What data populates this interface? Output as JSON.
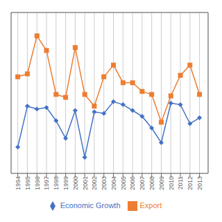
{
  "chart_data": {
    "type": "line",
    "x": [
      1994,
      1995,
      1996,
      1997,
      1998,
      1999,
      2000,
      2001,
      2002,
      2003,
      2004,
      2005,
      2006,
      2007,
      2008,
      2009,
      2010,
      2011,
      2012,
      2013
    ],
    "series": [
      {
        "name": "Economic Growth",
        "color": "#4472C4",
        "marker": "diamond",
        "values": [
          -6.0,
          8.0,
          7.0,
          7.5,
          3.0,
          -3.0,
          6.5,
          -9.5,
          6.0,
          5.5,
          9.5,
          8.5,
          6.5,
          4.5,
          0.5,
          -4.5,
          9.0,
          8.5,
          2.0,
          4.0
        ]
      },
      {
        "name": "Export",
        "color": "#ED7D31",
        "marker": "square",
        "values": [
          18.0,
          19.0,
          32.0,
          27.0,
          12.0,
          11.0,
          28.0,
          12.0,
          8.0,
          18.0,
          22.0,
          16.0,
          16.0,
          13.0,
          12.0,
          2.5,
          11.5,
          18.5,
          22.0,
          12.0
        ]
      }
    ],
    "xlim": [
      1993.3,
      2013.9
    ],
    "xticks": [
      1994,
      1995,
      1996,
      1997,
      1998,
      1999,
      2000,
      2001,
      2002,
      2003,
      2004,
      2005,
      2006,
      2007,
      2008,
      2009,
      2010,
      2011,
      2012,
      2013
    ],
    "ylim": [
      -15,
      40
    ],
    "yticks": [
      -10,
      0,
      10,
      20,
      30,
      40
    ],
    "grid": true,
    "legend": "bottom",
    "tick_labels": "x"
  }
}
